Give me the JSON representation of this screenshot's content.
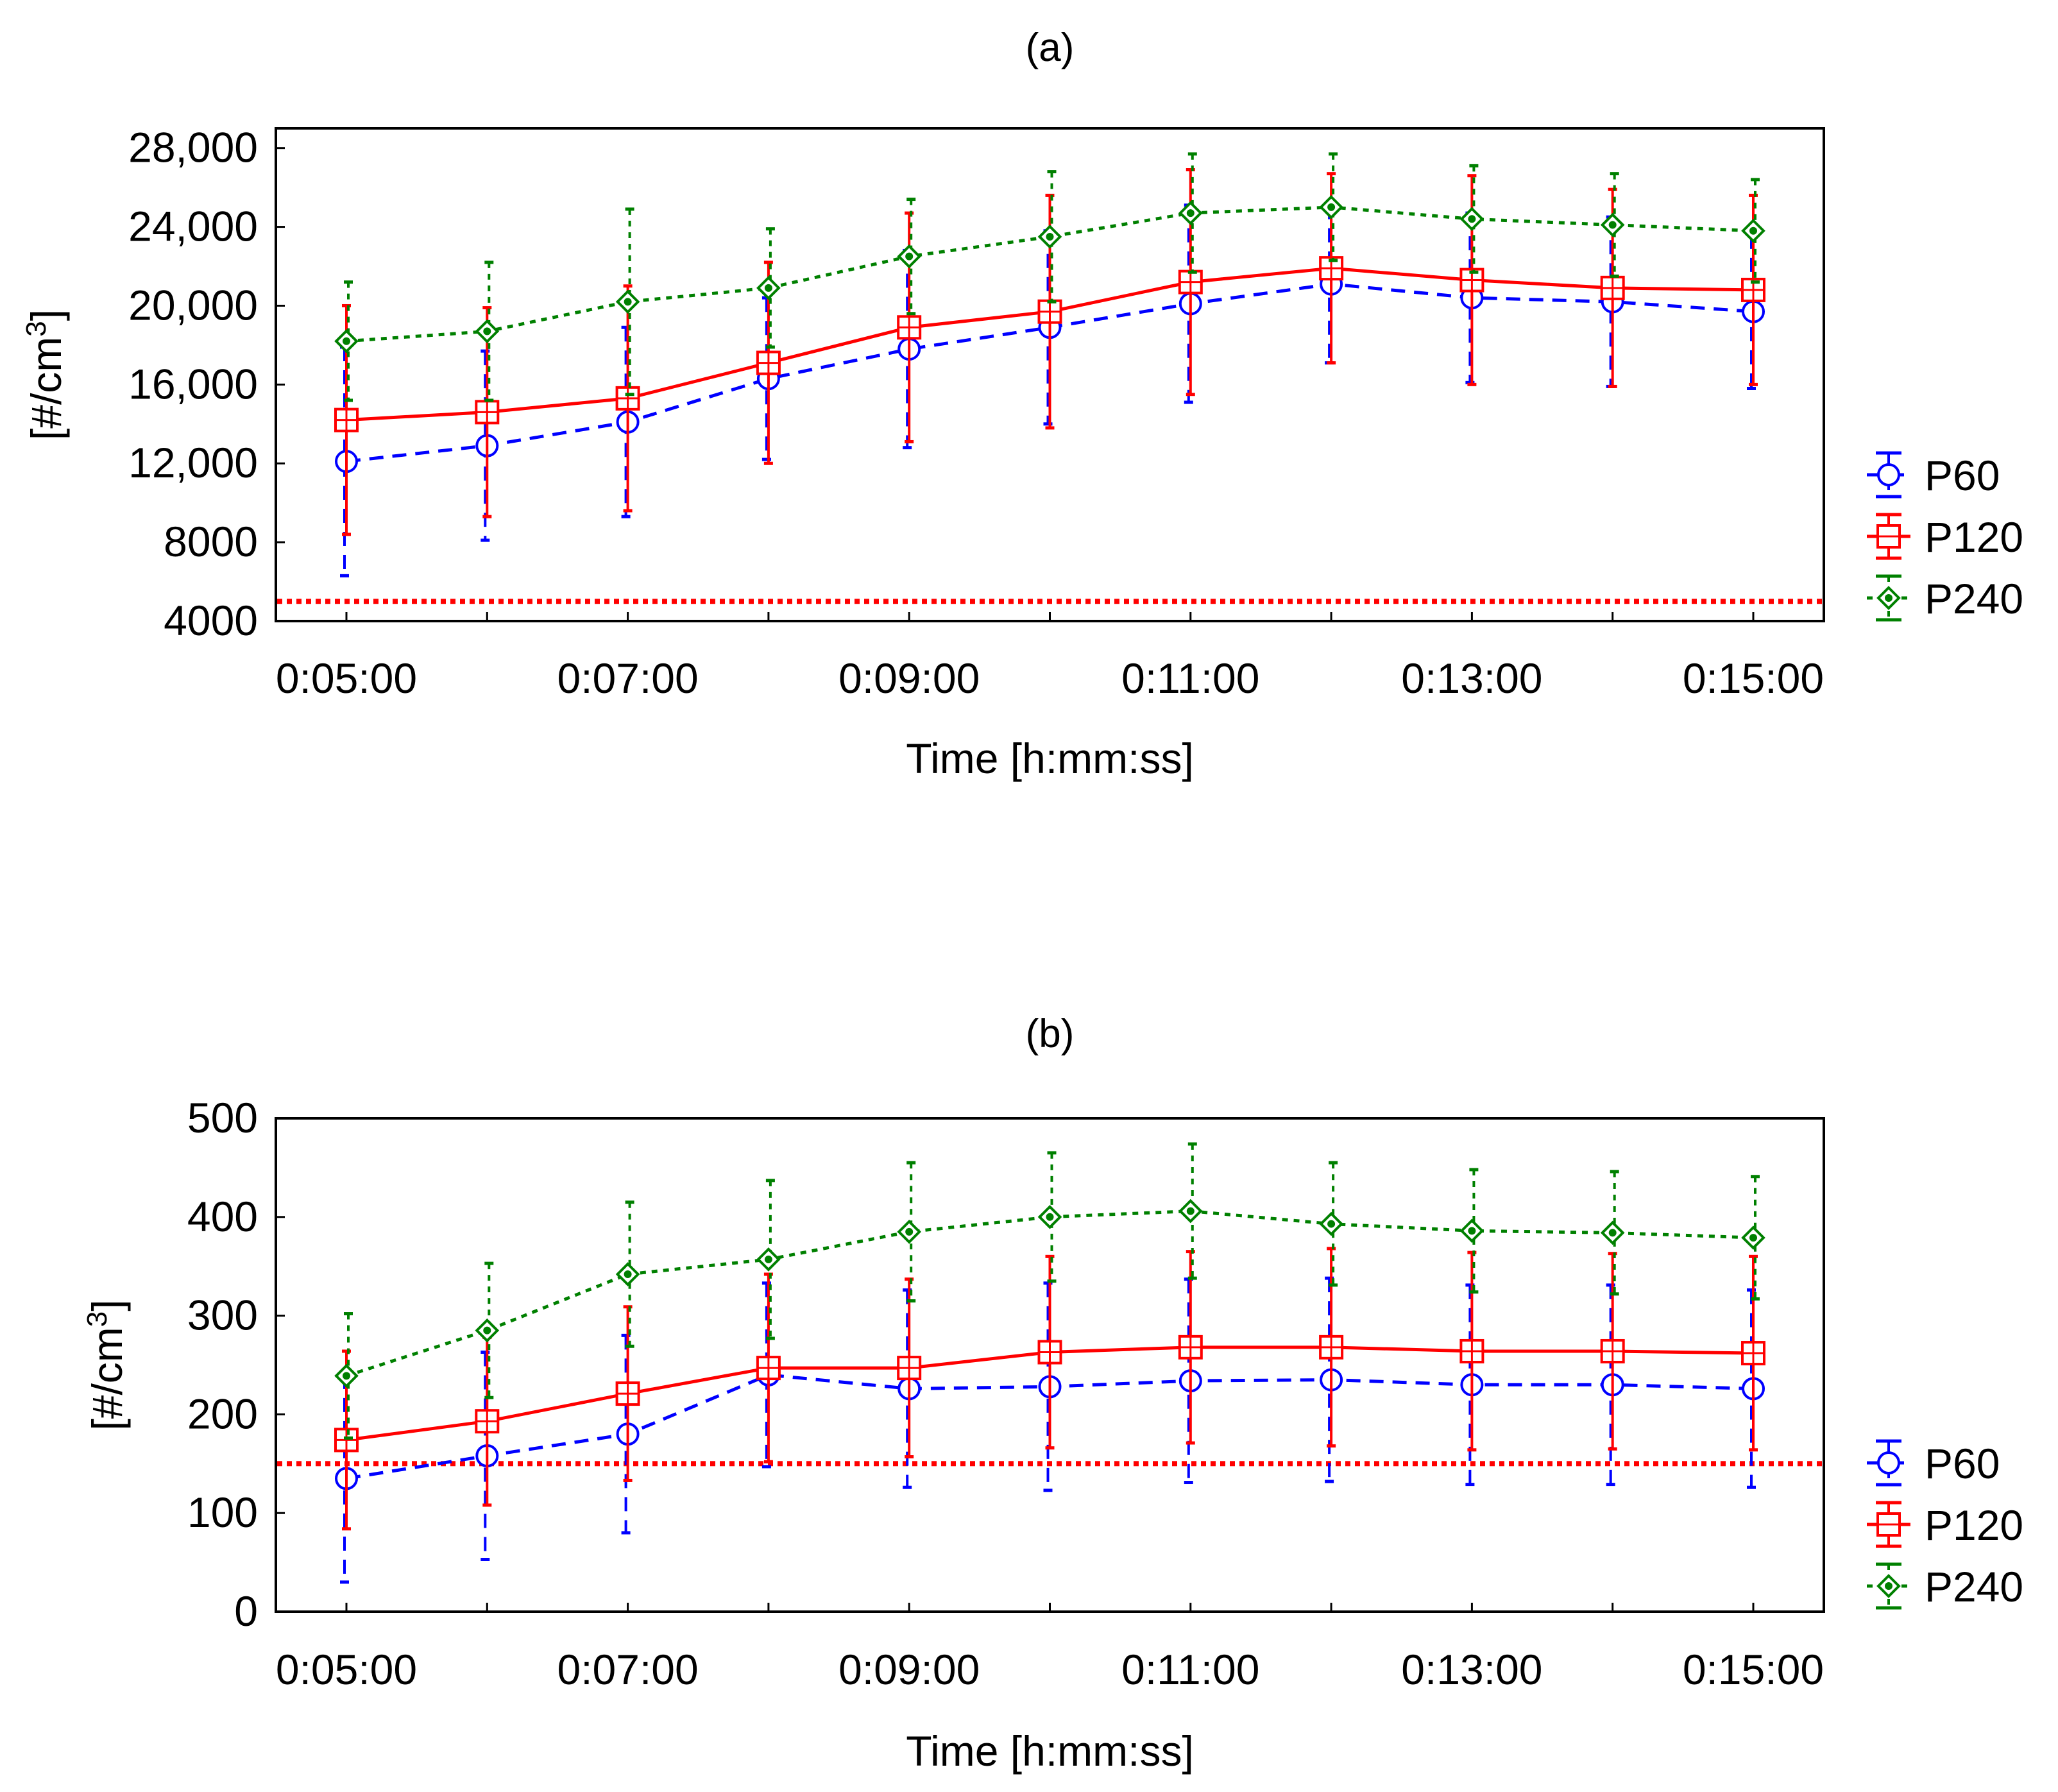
{
  "chart_data": [
    {
      "type": "line",
      "title": "(a)",
      "xlabel": "Time [h:mm:ss]",
      "ylabel_main": "[#/cm",
      "ylabel_sup": "3",
      "ylabel_end": "]",
      "categories": [
        "0:05:00",
        "0:06:00",
        "0:07:00",
        "0:08:00",
        "0:09:00",
        "0:10:00",
        "0:11:00",
        "0:12:00",
        "0:13:00",
        "0:14:00",
        "0:15:00"
      ],
      "x_tick_labels": [
        "0:05:00",
        "0:07:00",
        "0:09:00",
        "0:11:00",
        "0:13:00",
        "0:15:00"
      ],
      "y_ticks": [
        4000,
        8000,
        12000,
        16000,
        20000,
        24000,
        28000
      ],
      "y_tick_labels": [
        "4000",
        "8000",
        "12,000",
        "16,000",
        "20,000",
        "24,000",
        "28,000"
      ],
      "ylim": [
        4000,
        29000
      ],
      "threshold": 5000,
      "series": [
        {
          "name": "P60",
          "color": "#0000ff",
          "marker": "circle",
          "dash": "dashed",
          "values": [
            12100,
            12900,
            14100,
            16300,
            17800,
            18900,
            20100,
            21100,
            20400,
            20200,
            19700
          ],
          "err": [
            5800,
            4800,
            4800,
            4100,
            5000,
            4900,
            5000,
            4000,
            4300,
            4300,
            3900
          ]
        },
        {
          "name": "P120",
          "color": "#ff0000",
          "marker": "square",
          "dash": "solid",
          "values": [
            14200,
            14600,
            15300,
            17100,
            18900,
            19700,
            21200,
            21900,
            21300,
            20900,
            20800
          ],
          "err": [
            5800,
            5300,
            5700,
            5100,
            5800,
            5900,
            5700,
            4800,
            5300,
            5000,
            4800
          ]
        },
        {
          "name": "P240",
          "color": "#008000",
          "marker": "diamond",
          "dash": "dotted",
          "values": [
            18200,
            18700,
            20200,
            20900,
            22500,
            23500,
            24700,
            25000,
            24400,
            24100,
            23800
          ],
          "err": [
            3000,
            3500,
            4700,
            3000,
            2900,
            3300,
            3000,
            2700,
            2700,
            2600,
            2600
          ]
        }
      ]
    },
    {
      "type": "line",
      "title": "(b)",
      "xlabel": "Time [h:mm:ss]",
      "ylabel_main": "[#/cm",
      "ylabel_sup": "3",
      "ylabel_end": "]",
      "categories": [
        "0:05:00",
        "0:06:00",
        "0:07:00",
        "0:08:00",
        "0:09:00",
        "0:10:00",
        "0:11:00",
        "0:12:00",
        "0:13:00",
        "0:14:00",
        "0:15:00"
      ],
      "x_tick_labels": [
        "0:05:00",
        "0:07:00",
        "0:09:00",
        "0:11:00",
        "0:13:00",
        "0:15:00"
      ],
      "y_ticks": [
        0,
        100,
        200,
        300,
        400,
        500
      ],
      "y_tick_labels": [
        "0",
        "100",
        "200",
        "300",
        "400",
        "500"
      ],
      "ylim": [
        0,
        500
      ],
      "threshold": 150,
      "series": [
        {
          "name": "P60",
          "color": "#0000ff",
          "marker": "circle",
          "dash": "dashed",
          "values": [
            135,
            158,
            180,
            240,
            226,
            228,
            234,
            235,
            230,
            230,
            226
          ],
          "err": [
            105,
            105,
            100,
            93,
            100,
            105,
            103,
            103,
            101,
            101,
            100
          ]
        },
        {
          "name": "P120",
          "color": "#ff0000",
          "marker": "square",
          "dash": "solid",
          "values": [
            174,
            193,
            221,
            247,
            247,
            263,
            268,
            268,
            264,
            264,
            262
          ],
          "err": [
            90,
            85,
            88,
            95,
            90,
            97,
            97,
            100,
            100,
            99,
            98
          ]
        },
        {
          "name": "P240",
          "color": "#008000",
          "marker": "diamond",
          "dash": "dotted",
          "values": [
            239,
            285,
            342,
            357,
            385,
            400,
            406,
            393,
            386,
            384,
            379
          ],
          "err": [
            63,
            68,
            73,
            80,
            70,
            65,
            68,
            62,
            62,
            62,
            62
          ]
        }
      ]
    }
  ]
}
